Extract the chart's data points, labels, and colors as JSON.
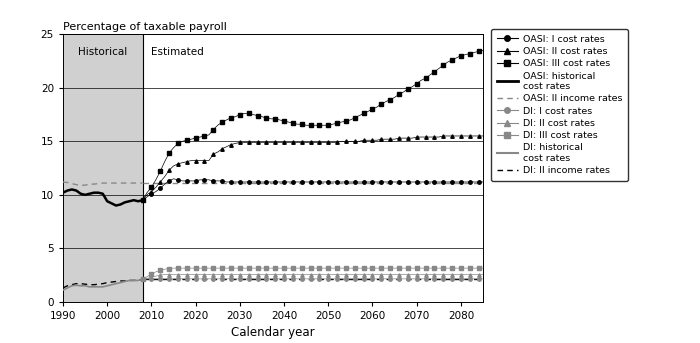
{
  "title_y": "Percentage of taxable payroll",
  "xlabel": "Calendar year",
  "historical_label": "Historical",
  "estimated_label": "Estimated",
  "hist_end": 2008,
  "xlim": [
    1990,
    2085
  ],
  "ylim": [
    0,
    25
  ],
  "yticks": [
    0,
    5,
    10,
    15,
    20,
    25
  ],
  "xticks": [
    1990,
    2000,
    2010,
    2020,
    2030,
    2040,
    2050,
    2060,
    2070,
    2080
  ],
  "bg_color": "#d0d0d0",
  "white_color": "#ffffff",
  "oasi_hist_years": [
    1990,
    1991,
    1992,
    1993,
    1994,
    1995,
    1996,
    1997,
    1998,
    1999,
    2000,
    2001,
    2002,
    2003,
    2004,
    2005,
    2006,
    2007,
    2008
  ],
  "oasi_hist_vals": [
    10.2,
    10.4,
    10.5,
    10.4,
    10.1,
    10.0,
    10.1,
    10.2,
    10.2,
    10.1,
    9.4,
    9.2,
    9.0,
    9.1,
    9.3,
    9.4,
    9.5,
    9.4,
    9.5
  ],
  "oasi_ii_income_hist_years": [
    1990,
    1991,
    1992,
    1993,
    1994,
    1995,
    1996,
    1997,
    1998,
    1999,
    2000,
    2001,
    2002,
    2003,
    2004,
    2005,
    2006,
    2007,
    2008
  ],
  "oasi_ii_income_hist_vals": [
    11.2,
    11.15,
    11.05,
    10.95,
    10.9,
    10.9,
    11.0,
    11.0,
    11.05,
    11.1,
    11.1,
    11.1,
    11.1,
    11.1,
    11.1,
    11.1,
    11.1,
    11.1,
    11.1
  ],
  "di_hist_years": [
    1990,
    1991,
    1992,
    1993,
    1994,
    1995,
    1996,
    1997,
    1998,
    1999,
    2000,
    2001,
    2002,
    2003,
    2004,
    2005,
    2006,
    2007,
    2008
  ],
  "di_hist_vals": [
    1.1,
    1.3,
    1.5,
    1.55,
    1.5,
    1.5,
    1.4,
    1.4,
    1.4,
    1.4,
    1.5,
    1.6,
    1.7,
    1.8,
    1.9,
    2.0,
    2.0,
    2.0,
    2.1
  ],
  "di_ii_income_hist_years": [
    1990,
    1991,
    1992,
    1993,
    1994,
    1995,
    1996,
    1997,
    1998,
    1999,
    2000,
    2001,
    2002,
    2003,
    2004,
    2005,
    2006,
    2007,
    2008
  ],
  "di_ii_income_hist_vals": [
    1.3,
    1.5,
    1.6,
    1.7,
    1.7,
    1.65,
    1.6,
    1.6,
    1.65,
    1.7,
    1.8,
    1.85,
    1.9,
    1.95,
    1.95,
    2.0,
    2.0,
    2.05,
    2.1
  ],
  "est_years": [
    2008,
    2009,
    2010,
    2011,
    2012,
    2013,
    2014,
    2015,
    2016,
    2017,
    2018,
    2019,
    2020,
    2021,
    2022,
    2023,
    2024,
    2025,
    2026,
    2027,
    2028,
    2029,
    2030,
    2031,
    2032,
    2033,
    2034,
    2035,
    2036,
    2037,
    2038,
    2039,
    2040,
    2041,
    2042,
    2043,
    2044,
    2045,
    2046,
    2047,
    2048,
    2049,
    2050,
    2051,
    2052,
    2053,
    2054,
    2055,
    2056,
    2057,
    2058,
    2059,
    2060,
    2061,
    2062,
    2063,
    2064,
    2065,
    2066,
    2067,
    2068,
    2069,
    2070,
    2071,
    2072,
    2073,
    2074,
    2075,
    2076,
    2077,
    2078,
    2079,
    2080,
    2081,
    2082,
    2083,
    2084,
    2085
  ],
  "oasi_I_est": [
    9.5,
    9.8,
    10.1,
    10.3,
    10.6,
    11.0,
    11.3,
    11.5,
    11.4,
    11.3,
    11.3,
    11.3,
    11.3,
    11.4,
    11.4,
    11.4,
    11.3,
    11.3,
    11.3,
    11.2,
    11.2,
    11.2,
    11.2,
    11.2,
    11.2,
    11.2,
    11.2,
    11.2,
    11.2,
    11.2,
    11.2,
    11.2,
    11.2,
    11.2,
    11.2,
    11.2,
    11.2,
    11.2,
    11.2,
    11.2,
    11.2,
    11.2,
    11.2,
    11.2,
    11.2,
    11.2,
    11.2,
    11.2,
    11.2,
    11.2,
    11.2,
    11.2,
    11.2,
    11.2,
    11.2,
    11.2,
    11.2,
    11.2,
    11.2,
    11.2,
    11.2,
    11.2,
    11.2,
    11.2,
    11.2,
    11.2,
    11.2,
    11.2,
    11.2,
    11.2,
    11.2,
    11.2,
    11.2,
    11.2,
    11.2,
    11.2,
    11.2,
    11.2
  ],
  "oasi_II_est": [
    9.5,
    10.0,
    10.3,
    10.7,
    11.2,
    11.7,
    12.3,
    12.7,
    12.9,
    13.0,
    13.1,
    13.2,
    13.2,
    13.2,
    13.2,
    13.2,
    13.8,
    14.0,
    14.3,
    14.5,
    14.7,
    14.8,
    14.9,
    14.9,
    14.9,
    14.9,
    14.9,
    14.9,
    14.9,
    14.9,
    14.9,
    14.9,
    14.9,
    14.9,
    14.9,
    14.9,
    14.9,
    14.9,
    14.9,
    14.9,
    14.9,
    14.9,
    14.9,
    14.9,
    14.9,
    15.0,
    15.0,
    15.0,
    15.0,
    15.0,
    15.1,
    15.1,
    15.1,
    15.1,
    15.2,
    15.2,
    15.2,
    15.2,
    15.3,
    15.3,
    15.3,
    15.3,
    15.4,
    15.4,
    15.4,
    15.4,
    15.4,
    15.4,
    15.5,
    15.5,
    15.5,
    15.5,
    15.5,
    15.5,
    15.5,
    15.5,
    15.5,
    15.5
  ],
  "oasi_III_est": [
    9.5,
    10.2,
    10.7,
    11.4,
    12.2,
    13.1,
    13.9,
    14.4,
    14.8,
    15.0,
    15.1,
    15.2,
    15.3,
    15.4,
    15.5,
    15.6,
    16.1,
    16.5,
    16.8,
    17.0,
    17.2,
    17.3,
    17.5,
    17.6,
    17.6,
    17.5,
    17.4,
    17.3,
    17.2,
    17.1,
    17.1,
    17.0,
    16.9,
    16.8,
    16.7,
    16.6,
    16.6,
    16.5,
    16.5,
    16.5,
    16.5,
    16.5,
    16.5,
    16.6,
    16.7,
    16.8,
    16.9,
    17.0,
    17.2,
    17.4,
    17.6,
    17.8,
    18.0,
    18.2,
    18.5,
    18.7,
    18.9,
    19.1,
    19.4,
    19.6,
    19.9,
    20.1,
    20.4,
    20.7,
    20.9,
    21.2,
    21.5,
    21.8,
    22.1,
    22.4,
    22.6,
    22.8,
    23.0,
    23.1,
    23.2,
    23.3,
    23.4,
    23.5
  ],
  "oasi_II_income_est": [
    11.1,
    11.1,
    11.1,
    11.1,
    11.1,
    11.1,
    11.1,
    11.1,
    11.1,
    11.1,
    11.1,
    11.1,
    11.1,
    11.1,
    11.1,
    11.1,
    11.1,
    11.1,
    11.1,
    11.1,
    11.1,
    11.1,
    11.1,
    11.1,
    11.1,
    11.1,
    11.1,
    11.1,
    11.1,
    11.1,
    11.1,
    11.1,
    11.1,
    11.1,
    11.1,
    11.1,
    11.1,
    11.1,
    11.1,
    11.1,
    11.1,
    11.1,
    11.1,
    11.1,
    11.1,
    11.1,
    11.1,
    11.1,
    11.1,
    11.1,
    11.1,
    11.1,
    11.1,
    11.1,
    11.1,
    11.1,
    11.1,
    11.1,
    11.1,
    11.1,
    11.1,
    11.1,
    11.1,
    11.1,
    11.1,
    11.1,
    11.1,
    11.1,
    11.1,
    11.1,
    11.1,
    11.1,
    11.1,
    11.1,
    11.1,
    11.1,
    11.1,
    11.1
  ],
  "di_I_est": [
    2.1,
    2.15,
    2.15,
    2.15,
    2.15,
    2.15,
    2.15,
    2.15,
    2.15,
    2.15,
    2.15,
    2.15,
    2.15,
    2.15,
    2.15,
    2.15,
    2.15,
    2.15,
    2.15,
    2.15,
    2.15,
    2.15,
    2.15,
    2.15,
    2.15,
    2.15,
    2.15,
    2.15,
    2.15,
    2.15,
    2.15,
    2.15,
    2.15,
    2.15,
    2.15,
    2.15,
    2.15,
    2.15,
    2.15,
    2.15,
    2.15,
    2.15,
    2.15,
    2.15,
    2.15,
    2.15,
    2.15,
    2.15,
    2.15,
    2.15,
    2.15,
    2.15,
    2.15,
    2.15,
    2.15,
    2.15,
    2.15,
    2.15,
    2.15,
    2.15,
    2.15,
    2.15,
    2.15,
    2.15,
    2.15,
    2.15,
    2.15,
    2.15,
    2.15,
    2.15,
    2.15,
    2.15,
    2.15,
    2.15,
    2.15,
    2.15,
    2.15,
    2.15
  ],
  "di_II_est": [
    2.1,
    2.2,
    2.3,
    2.4,
    2.5,
    2.55,
    2.55,
    2.55,
    2.55,
    2.55,
    2.55,
    2.55,
    2.55,
    2.55,
    2.55,
    2.55,
    2.55,
    2.55,
    2.55,
    2.55,
    2.55,
    2.55,
    2.55,
    2.55,
    2.55,
    2.55,
    2.55,
    2.55,
    2.55,
    2.55,
    2.55,
    2.55,
    2.55,
    2.55,
    2.55,
    2.55,
    2.55,
    2.55,
    2.55,
    2.55,
    2.55,
    2.55,
    2.55,
    2.55,
    2.55,
    2.55,
    2.55,
    2.55,
    2.55,
    2.55,
    2.55,
    2.55,
    2.55,
    2.55,
    2.55,
    2.55,
    2.55,
    2.55,
    2.55,
    2.55,
    2.55,
    2.55,
    2.55,
    2.55,
    2.55,
    2.55,
    2.55,
    2.55,
    2.55,
    2.55,
    2.55,
    2.55,
    2.55,
    2.55,
    2.55,
    2.55,
    2.55,
    2.55
  ],
  "di_III_est": [
    2.1,
    2.35,
    2.6,
    2.8,
    2.95,
    3.05,
    3.1,
    3.15,
    3.15,
    3.15,
    3.15,
    3.15,
    3.15,
    3.15,
    3.15,
    3.15,
    3.15,
    3.15,
    3.15,
    3.15,
    3.15,
    3.15,
    3.15,
    3.15,
    3.15,
    3.15,
    3.15,
    3.15,
    3.15,
    3.15,
    3.15,
    3.15,
    3.15,
    3.15,
    3.15,
    3.15,
    3.15,
    3.15,
    3.15,
    3.15,
    3.15,
    3.15,
    3.15,
    3.15,
    3.15,
    3.15,
    3.15,
    3.15,
    3.15,
    3.15,
    3.15,
    3.15,
    3.15,
    3.15,
    3.15,
    3.15,
    3.15,
    3.15,
    3.15,
    3.15,
    3.15,
    3.15,
    3.15,
    3.15,
    3.15,
    3.15,
    3.15,
    3.15,
    3.15,
    3.15,
    3.15,
    3.15,
    3.15,
    3.15,
    3.15,
    3.15,
    3.15,
    3.15
  ],
  "di_II_income_est": [
    2.1,
    2.1,
    2.1,
    2.1,
    2.1,
    2.1,
    2.1,
    2.1,
    2.1,
    2.1,
    2.1,
    2.1,
    2.1,
    2.1,
    2.1,
    2.1,
    2.1,
    2.1,
    2.1,
    2.1,
    2.1,
    2.1,
    2.1,
    2.1,
    2.1,
    2.1,
    2.1,
    2.1,
    2.1,
    2.1,
    2.1,
    2.1,
    2.1,
    2.1,
    2.1,
    2.1,
    2.1,
    2.1,
    2.1,
    2.1,
    2.1,
    2.1,
    2.1,
    2.1,
    2.1,
    2.1,
    2.1,
    2.1,
    2.1,
    2.1,
    2.1,
    2.1,
    2.1,
    2.1,
    2.1,
    2.1,
    2.1,
    2.1,
    2.1,
    2.1,
    2.1,
    2.1,
    2.1,
    2.1,
    2.1,
    2.1,
    2.1,
    2.1,
    2.1,
    2.1,
    2.1,
    2.1,
    2.1,
    2.1,
    2.1,
    2.1,
    2.1,
    2.1
  ]
}
